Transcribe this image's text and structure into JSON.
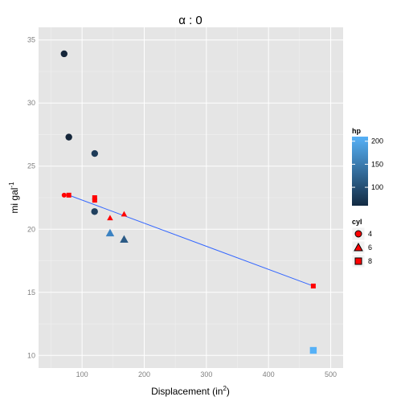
{
  "chart_data": {
    "type": "scatter",
    "title": "α : 0",
    "xlabel": "Displacement (in",
    "xlabel_sup": "2",
    "xlabel_close": ")",
    "ylabel": "mi gal",
    "ylabel_sup": "-1",
    "xlim": [
      30,
      520
    ],
    "ylim": [
      9,
      36
    ],
    "x_ticks": [
      100,
      200,
      300,
      400,
      500
    ],
    "y_ticks": [
      10,
      15,
      20,
      25,
      30,
      35
    ],
    "grid": true,
    "points_navy": [
      {
        "x": 71.1,
        "y": 33.9,
        "hp": 65,
        "cyl": 4,
        "color": "#15263a"
      },
      {
        "x": 78.7,
        "y": 27.3,
        "hp": 66,
        "cyl": 4,
        "color": "#15263a"
      },
      {
        "x": 120.3,
        "y": 26.0,
        "hp": 91,
        "cyl": 4,
        "color": "#1e3b58"
      },
      {
        "x": 120.1,
        "y": 21.4,
        "hp": 97,
        "cyl": 4,
        "color": "#20405f"
      },
      {
        "x": 145.0,
        "y": 19.7,
        "hp": 175,
        "cyl": 6,
        "color": "#3b82c2"
      },
      {
        "x": 167.6,
        "y": 19.2,
        "hp": 123,
        "cyl": 6,
        "color": "#2b5a85"
      },
      {
        "x": 472.0,
        "y": 10.4,
        "hp": 205,
        "cyl": 8,
        "color": "#56b1f7"
      }
    ],
    "points_red": [
      {
        "x": 71.1,
        "y": 22.7,
        "cyl": 4
      },
      {
        "x": 78.7,
        "y": 22.7,
        "cyl": 8
      },
      {
        "x": 120.3,
        "y": 22.5,
        "cyl": 8
      },
      {
        "x": 120.3,
        "y": 22.3,
        "cyl": 8
      },
      {
        "x": 145.0,
        "y": 20.9,
        "cyl": 6
      },
      {
        "x": 167.6,
        "y": 21.2,
        "cyl": 6
      },
      {
        "x": 472.0,
        "y": 15.5,
        "cyl": 8
      }
    ],
    "fit_line": {
      "x": [
        78.7,
        472.0
      ],
      "y": [
        22.7,
        15.5
      ],
      "color": "#3366ff"
    },
    "legend_hp": {
      "title": "hp",
      "ticks": [
        100,
        150,
        200
      ],
      "range": [
        60,
        210
      ],
      "low_color": "#132b43",
      "high_color": "#56b1f7"
    },
    "legend_cyl": {
      "title": "cyl",
      "items": [
        {
          "label": "4",
          "shape": "circle"
        },
        {
          "label": "6",
          "shape": "triangle"
        },
        {
          "label": "8",
          "shape": "square"
        }
      ]
    },
    "panel_bg": "#e5e5e5",
    "point_red": "#ff0000"
  }
}
